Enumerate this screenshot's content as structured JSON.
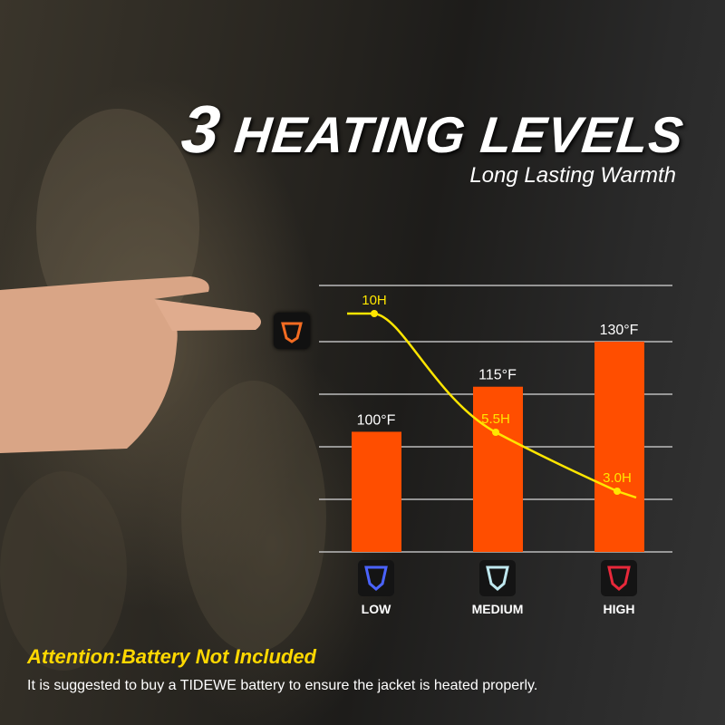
{
  "header": {
    "number": "3",
    "title": "HEATING LEVELS",
    "subtitle": "Long Lasting Warmth"
  },
  "chart_data": {
    "type": "bar",
    "categories": [
      "LOW",
      "MEDIUM",
      "HIGH"
    ],
    "series": [
      {
        "values": [
          100,
          115,
          130
        ],
        "labels": [
          "100°F",
          "115°F",
          "130°F"
        ],
        "color": "#ff4e00"
      },
      {
        "type": "line",
        "values": [
          10,
          5.5,
          3.0
        ],
        "labels": [
          "10H",
          "5.5H",
          "3.0H"
        ],
        "color": "#ffe600"
      }
    ],
    "level_icon_colors": [
      "#4a63ff",
      "#bfe8ef",
      "#e8283a"
    ],
    "grid": true
  },
  "footer": {
    "attention": "Attention:Battery Not Included",
    "note": "It is suggested to buy a TIDEWE battery to ensure the jacket is heated properly."
  }
}
